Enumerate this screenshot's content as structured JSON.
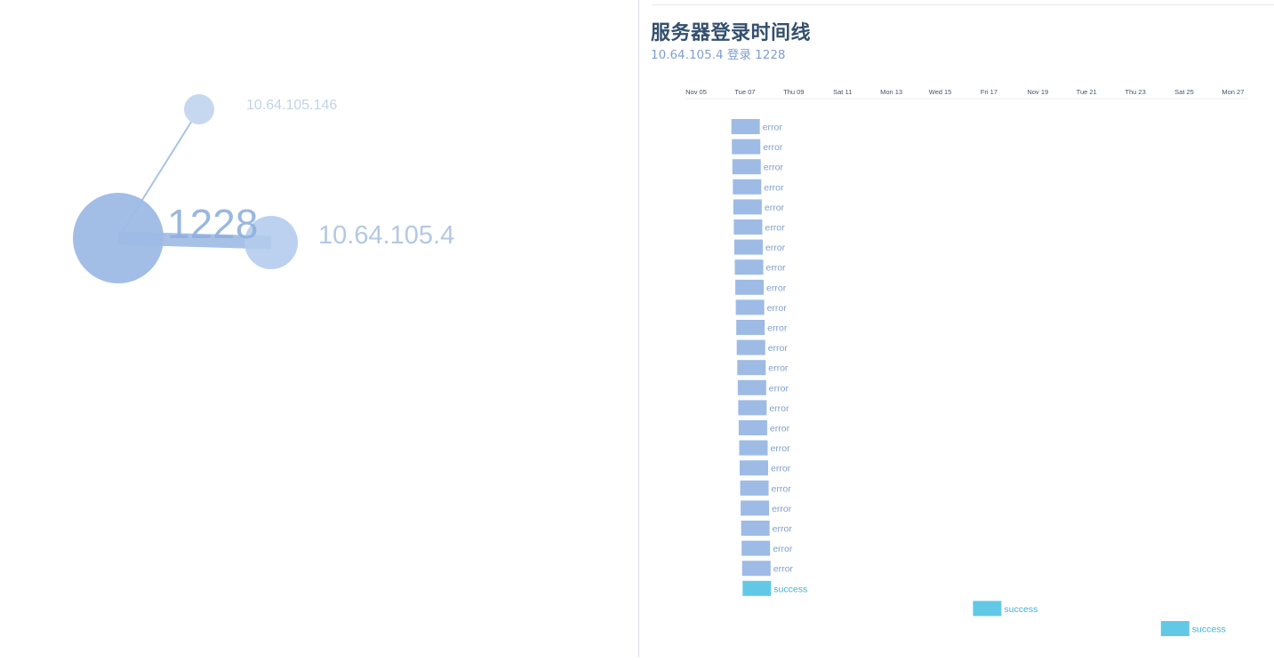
{
  "graph": {
    "center": {
      "label": "1228",
      "color": "#9dbbe5"
    },
    "nodes": [
      {
        "label": "10.64.105.146",
        "color": "#c6d8f0",
        "label_color": "#c2d4ea"
      },
      {
        "label": "10.64.105.4",
        "color": "#b4cced",
        "label_color": "#b3c8e4"
      }
    ]
  },
  "timeline": {
    "title": "服务器登录时间线",
    "subtitle": "10.64.105.4 登录 1228",
    "axis_ticks": [
      "Nov 05",
      "Tue 07",
      "Thu 09",
      "Sat 11",
      "Mon 13",
      "Wed 15",
      "Fri 17",
      "Nov 19",
      "Tue 21",
      "Thu 23",
      "Sat 25",
      "Mon 27"
    ],
    "colors": {
      "error": "#9dbbe5",
      "success": "#62c8e6",
      "label_error": "#7f9fcd",
      "label_success": "#3fb0d6"
    },
    "events": [
      {
        "day": 6.7,
        "status": "error"
      },
      {
        "day": 6.72,
        "status": "error"
      },
      {
        "day": 6.74,
        "status": "error"
      },
      {
        "day": 6.76,
        "status": "error"
      },
      {
        "day": 6.78,
        "status": "error"
      },
      {
        "day": 6.8,
        "status": "error"
      },
      {
        "day": 6.82,
        "status": "error"
      },
      {
        "day": 6.84,
        "status": "error"
      },
      {
        "day": 6.86,
        "status": "error"
      },
      {
        "day": 6.88,
        "status": "error"
      },
      {
        "day": 6.9,
        "status": "error"
      },
      {
        "day": 6.92,
        "status": "error"
      },
      {
        "day": 6.94,
        "status": "error"
      },
      {
        "day": 6.96,
        "status": "error"
      },
      {
        "day": 6.98,
        "status": "error"
      },
      {
        "day": 7.0,
        "status": "error"
      },
      {
        "day": 7.02,
        "status": "error"
      },
      {
        "day": 7.04,
        "status": "error"
      },
      {
        "day": 7.06,
        "status": "error"
      },
      {
        "day": 7.08,
        "status": "error"
      },
      {
        "day": 7.1,
        "status": "error"
      },
      {
        "day": 7.12,
        "status": "error"
      },
      {
        "day": 7.14,
        "status": "error"
      },
      {
        "day": 7.16,
        "status": "success"
      },
      {
        "day": 16.6,
        "status": "success"
      },
      {
        "day": 24.3,
        "status": "success"
      }
    ]
  }
}
